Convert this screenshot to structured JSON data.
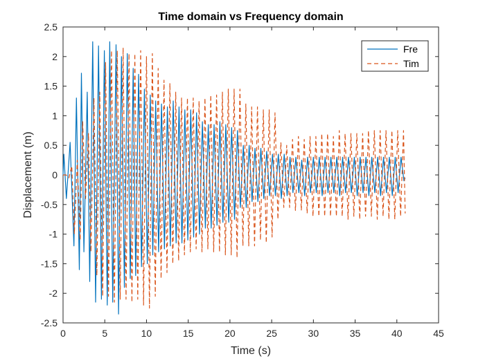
{
  "chart_data": {
    "type": "line",
    "title": "Time domain vs Frequency domain",
    "xlabel": "Time (s)",
    "ylabel": "Displacement (m)",
    "xlim": [
      0,
      45
    ],
    "ylim": [
      -2.5,
      2.5
    ],
    "xticks": [
      0,
      5,
      10,
      15,
      20,
      25,
      30,
      35,
      40,
      45
    ],
    "yticks": [
      -2.5,
      -2,
      -1.5,
      -1,
      -0.5,
      0,
      0.5,
      1,
      1.5,
      2,
      2.5
    ],
    "xtick_labels": [
      "0",
      "5",
      "10",
      "15",
      "20",
      "25",
      "30",
      "35",
      "40",
      "45"
    ],
    "ytick_labels": [
      "-2.5",
      "-2",
      "-1.5",
      "-1",
      "-0.5",
      "0",
      "0.5",
      "1",
      "1.5",
      "2",
      "2.5"
    ],
    "grid": false,
    "legend_position": "top-right",
    "series": [
      {
        "name": "Fre",
        "color": "#0072BD",
        "style": "solid",
        "x": [
          0,
          0.1,
          0.4,
          0.85,
          1.3,
          1.6,
          1.95,
          2.2,
          2.5,
          2.9,
          3.2,
          3.55,
          3.9,
          4.25,
          4.6,
          4.95,
          5.3,
          5.6,
          5.95,
          6.35,
          6.65,
          7.0,
          7.35,
          7.7,
          8.05,
          8.4,
          8.7,
          9.05,
          9.4,
          9.75,
          10.1,
          10.45,
          10.75,
          11.1,
          11.45,
          11.8,
          12.15,
          12.5,
          12.85,
          13.2,
          13.55,
          13.9,
          14.25,
          14.6,
          14.95,
          15.3,
          15.65,
          16.0,
          16.35,
          16.7,
          17.05,
          17.4,
          17.75,
          18.1,
          18.45,
          18.8,
          19.15,
          19.5,
          19.85,
          20.2,
          20.55,
          20.9,
          21.25,
          21.6,
          21.95,
          22.3,
          22.65,
          23.0,
          23.35,
          23.7,
          24.05,
          24.4,
          24.75,
          25.1,
          25.45,
          25.8,
          26.15,
          26.5,
          26.85,
          27.2,
          27.55,
          27.9,
          28.25,
          28.6,
          28.95,
          29.3,
          29.65,
          30.0,
          30.35,
          30.7,
          31.05,
          31.4,
          31.75,
          32.1,
          32.45,
          32.8,
          33.15,
          33.5,
          33.85,
          34.2,
          34.55,
          34.9,
          35.25,
          35.6,
          35.95,
          36.3,
          36.65,
          37.0,
          37.35,
          37.7,
          38.05,
          38.4,
          38.75,
          39.1,
          39.45,
          39.8,
          40.15,
          40.5,
          40.85,
          41.0
        ],
        "y": [
          0,
          0.35,
          -0.4,
          0.55,
          -1.2,
          1.3,
          -1.6,
          1.72,
          -1.3,
          1.4,
          -1.8,
          2.25,
          -2.15,
          2.18,
          -2.1,
          2.1,
          -2.2,
          2.25,
          -2.15,
          2.2,
          -2.35,
          2.0,
          -1.9,
          2.05,
          -1.75,
          1.8,
          -1.7,
          1.7,
          -1.55,
          1.45,
          -1.5,
          1.35,
          -1.35,
          1.25,
          -1.3,
          1.2,
          -1.25,
          1.15,
          -1.2,
          1.25,
          -1.15,
          1.15,
          -1.15,
          1.1,
          -1.1,
          1.1,
          -1.05,
          1.05,
          -1.0,
          0.9,
          -0.9,
          0.85,
          -0.9,
          0.85,
          -0.85,
          0.9,
          -0.8,
          0.85,
          -0.8,
          0.8,
          -0.75,
          0.75,
          -0.55,
          0.5,
          -0.55,
          0.5,
          -0.45,
          0.45,
          -0.45,
          0.45,
          -0.4,
          0.4,
          -0.35,
          0.35,
          -0.35,
          0.35,
          -0.4,
          0.35,
          -0.35,
          0.3,
          -0.3,
          0.3,
          -0.3,
          0.25,
          -0.35,
          0.3,
          -0.3,
          0.3,
          -0.3,
          0.3,
          -0.35,
          0.3,
          -0.3,
          0.3,
          -0.3,
          0.3,
          -0.35,
          0.3,
          -0.3,
          0.3,
          -0.3,
          0.3,
          -0.35,
          0.3,
          -0.3,
          0.3,
          -0.35,
          0.3,
          -0.3,
          0.3,
          -0.35,
          0.3,
          -0.3,
          0.3,
          -0.35,
          0.3,
          -0.3,
          0.3,
          -0.1,
          -0.05
        ]
      },
      {
        "name": "Tim",
        "color": "#D95319",
        "style": "dashed",
        "x": [
          0,
          0.35,
          0.7,
          1.05,
          1.35,
          1.7,
          2.05,
          2.35,
          2.7,
          3.05,
          3.35,
          3.7,
          4.05,
          4.4,
          4.75,
          5.1,
          5.45,
          5.8,
          6.15,
          6.5,
          6.85,
          7.2,
          7.55,
          7.9,
          8.25,
          8.6,
          8.95,
          9.3,
          9.65,
          10.0,
          10.35,
          10.7,
          11.05,
          11.4,
          11.75,
          12.1,
          12.45,
          12.8,
          13.15,
          13.5,
          13.85,
          14.2,
          14.55,
          14.9,
          15.25,
          15.6,
          15.95,
          16.3,
          16.65,
          17.0,
          17.35,
          17.7,
          18.05,
          18.4,
          18.75,
          19.1,
          19.45,
          19.8,
          20.15,
          20.5,
          20.85,
          21.2,
          21.55,
          21.9,
          22.25,
          22.6,
          22.95,
          23.3,
          23.65,
          24.0,
          24.35,
          24.7,
          25.05,
          25.4,
          25.75,
          26.1,
          26.45,
          26.8,
          27.15,
          27.5,
          27.85,
          28.2,
          28.55,
          28.9,
          29.25,
          29.6,
          29.95,
          30.3,
          30.65,
          31.0,
          31.35,
          31.7,
          32.05,
          32.4,
          32.75,
          33.1,
          33.45,
          33.8,
          34.15,
          34.5,
          34.85,
          35.2,
          35.55,
          35.9,
          36.25,
          36.6,
          36.95,
          37.3,
          37.65,
          38.0,
          38.35,
          38.7,
          39.05,
          39.4,
          39.75,
          40.1,
          40.45,
          40.8,
          41.0
        ],
        "y": [
          0,
          0,
          -0.05,
          0.15,
          -1.0,
          0.25,
          -1.1,
          0.9,
          -0.4,
          0.7,
          -1.3,
          1.3,
          -1.7,
          1.4,
          -2.05,
          1.9,
          -2.05,
          2.1,
          -2.15,
          2.1,
          -2.1,
          2.15,
          -2.1,
          2.05,
          -2.15,
          2.05,
          -2.1,
          2.1,
          -2.2,
          2.0,
          -2.25,
          2.05,
          -2.05,
          1.8,
          -1.75,
          1.6,
          -1.65,
          1.55,
          -1.5,
          1.4,
          -1.45,
          1.3,
          -1.35,
          1.3,
          -1.3,
          1.3,
          -1.25,
          1.25,
          -1.3,
          1.3,
          -1.25,
          1.35,
          -1.3,
          1.35,
          -1.3,
          1.4,
          -1.35,
          1.45,
          -1.35,
          1.45,
          -1.4,
          1.45,
          -1.2,
          1.2,
          -1.2,
          1.15,
          -1.2,
          1.15,
          -1.1,
          1.1,
          -1.15,
          1.1,
          -1.05,
          1.05,
          -0.75,
          0.55,
          -0.55,
          0.5,
          -0.55,
          0.6,
          -0.6,
          0.65,
          -0.6,
          0.6,
          -0.65,
          0.65,
          -0.7,
          0.65,
          -0.7,
          0.7,
          -0.7,
          0.7,
          -0.7,
          0.65,
          -0.7,
          0.75,
          -0.7,
          0.7,
          -0.75,
          0.7,
          -0.7,
          0.7,
          -0.75,
          0.7,
          -0.7,
          0.75,
          -0.7,
          0.75,
          -0.75,
          0.75,
          -0.7,
          0.75,
          -0.75,
          0.75,
          -0.75,
          0.75,
          -0.7,
          0.75,
          -0.65
        ]
      }
    ]
  }
}
